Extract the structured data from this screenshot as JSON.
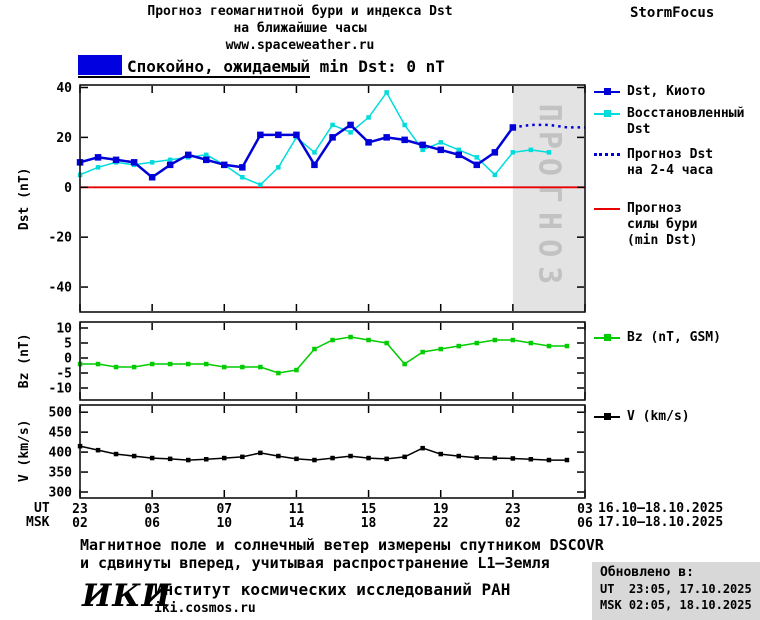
{
  "header": {
    "title_line1": "Прогноз геомагнитной бури и индекса Dst",
    "title_line2": "на ближайшие часы",
    "site": "www.spaceweather.ru",
    "brand": "StormFocus"
  },
  "banner": {
    "label": "Спокойно, ожидаемый min Dst: 0 nT",
    "swatch_color": "#0000e0"
  },
  "legends": {
    "dst_kyoto": "Dst, Киото",
    "dst_restored_line1": "Восстановленный",
    "dst_restored_line2": "Dst",
    "forecast_line1": "Прогноз Dst",
    "forecast_line2": "на 2-4 часа",
    "storm_line1": "Прогноз",
    "storm_line2": "силы бури",
    "storm_line3": "(min Dst)",
    "bz": "Bz (nT, GSM)",
    "v": "V (km/s)"
  },
  "axis": {
    "ut_label": "UT",
    "msk_label": "MSK",
    "ut_dates": "16.10–18.10.2025",
    "msk_dates": "17.10–18.10.2025"
  },
  "footer": {
    "caption_line1": "Магнитное поле и солнечный ветер измерены спутником DSCOVR",
    "caption_line2": "и сдвинуты вперед, учитывая распространение L1—Земля",
    "logo": "ИКИ",
    "institute": "Институт космических исследований РАН",
    "site": "iki.cosmos.ru",
    "updated_label": "Обновлено в:",
    "updated_ut": "UT  23:05, 17.10.2025",
    "updated_msk": "MSK 02:05, 18.10.2025"
  },
  "chart_data": [
    {
      "type": "line",
      "ylabel": "Dst (nT)",
      "ylim": [
        -50,
        41
      ],
      "yticks": [
        40,
        20,
        0,
        -20,
        -40
      ],
      "xlim": [
        0,
        28
      ],
      "x_tick_hours": [
        0,
        4,
        8,
        12,
        16,
        20,
        24,
        28
      ],
      "x_tick_labels_ut": [
        "23",
        "03",
        "07",
        "11",
        "15",
        "19",
        "23",
        "03"
      ],
      "x_tick_labels_msk": [
        "02",
        "06",
        "10",
        "14",
        "18",
        "22",
        "02",
        "06"
      ],
      "forecast_region": {
        "start": 24,
        "end": 28,
        "label": "ПРОГНОЗ",
        "fill": "#e3e3e3",
        "label_color": "#c2c2c2"
      },
      "series": [
        {
          "name": "Прогноз силы бури (min Dst)",
          "color": "#e80000",
          "width": 1.8,
          "x": [
            0,
            28
          ],
          "values": [
            0,
            0
          ]
        },
        {
          "name": "Восстановленный Dst",
          "color": "#00dcdc",
          "width": 1.5,
          "marker": true,
          "x": [
            0,
            1,
            2,
            3,
            4,
            5,
            6,
            7,
            8,
            9,
            10,
            11,
            12,
            13,
            14,
            15,
            16,
            17,
            18,
            19,
            20,
            21,
            22,
            23,
            24,
            25,
            26
          ],
          "values": [
            5,
            8,
            10,
            9,
            10,
            11,
            12,
            13,
            9,
            4,
            1,
            8,
            20,
            14,
            25,
            22,
            28,
            38,
            25,
            15,
            18,
            15,
            12,
            5,
            14,
            15,
            14
          ]
        },
        {
          "name": "Dst, Киото",
          "color": "#0000d8",
          "width": 2.5,
          "marker": true,
          "x": [
            0,
            1,
            2,
            3,
            4,
            5,
            6,
            7,
            8,
            9,
            10,
            11,
            12,
            13,
            14,
            15,
            16,
            17,
            18,
            19,
            20,
            21,
            22,
            23,
            24
          ],
          "values": [
            10,
            12,
            11,
            10,
            4,
            9,
            13,
            11,
            9,
            8,
            21,
            21,
            21,
            9,
            20,
            25,
            18,
            20,
            19,
            17,
            15,
            13,
            9,
            14,
            24
          ]
        },
        {
          "name": "Прогноз Dst на 2-4 часа",
          "color": "#0000d8",
          "width": 2.5,
          "dotted": true,
          "x": [
            24,
            25,
            26,
            27,
            28
          ],
          "values": [
            24,
            25,
            25,
            24,
            24
          ]
        }
      ]
    },
    {
      "type": "line",
      "ylabel": "Bz (nT)",
      "ylim": [
        -14,
        12
      ],
      "yticks": [
        10,
        5,
        0,
        -5,
        -10
      ],
      "series": [
        {
          "name": "Bz (nT, GSM)",
          "color": "#00cc00",
          "width": 1.5,
          "marker": true,
          "x": [
            0,
            1,
            2,
            3,
            4,
            5,
            6,
            7,
            8,
            9,
            10,
            11,
            12,
            13,
            14,
            15,
            16,
            17,
            18,
            19,
            20,
            21,
            22,
            23,
            24,
            25,
            26,
            27
          ],
          "values": [
            -2,
            -2,
            -3,
            -3,
            -2,
            -2,
            -2,
            -2,
            -3,
            -3,
            -3,
            -5,
            -4,
            3,
            6,
            7,
            6,
            5,
            -2,
            2,
            3,
            4,
            5,
            6,
            6,
            5,
            4,
            4
          ]
        }
      ]
    },
    {
      "type": "line",
      "ylabel": "V (km/s)",
      "ylim": [
        285,
        518
      ],
      "yticks": [
        500,
        450,
        400,
        350,
        300
      ],
      "series": [
        {
          "name": "V (km/s)",
          "color": "#000000",
          "width": 1.5,
          "marker": true,
          "x": [
            0,
            1,
            2,
            3,
            4,
            5,
            6,
            7,
            8,
            9,
            10,
            11,
            12,
            13,
            14,
            15,
            16,
            17,
            18,
            19,
            20,
            21,
            22,
            23,
            24,
            25,
            26,
            27
          ],
          "values": [
            415,
            405,
            395,
            390,
            385,
            383,
            380,
            382,
            385,
            388,
            398,
            390,
            383,
            380,
            385,
            390,
            385,
            383,
            388,
            410,
            395,
            390,
            386,
            385,
            384,
            382,
            380,
            380
          ]
        }
      ]
    }
  ]
}
